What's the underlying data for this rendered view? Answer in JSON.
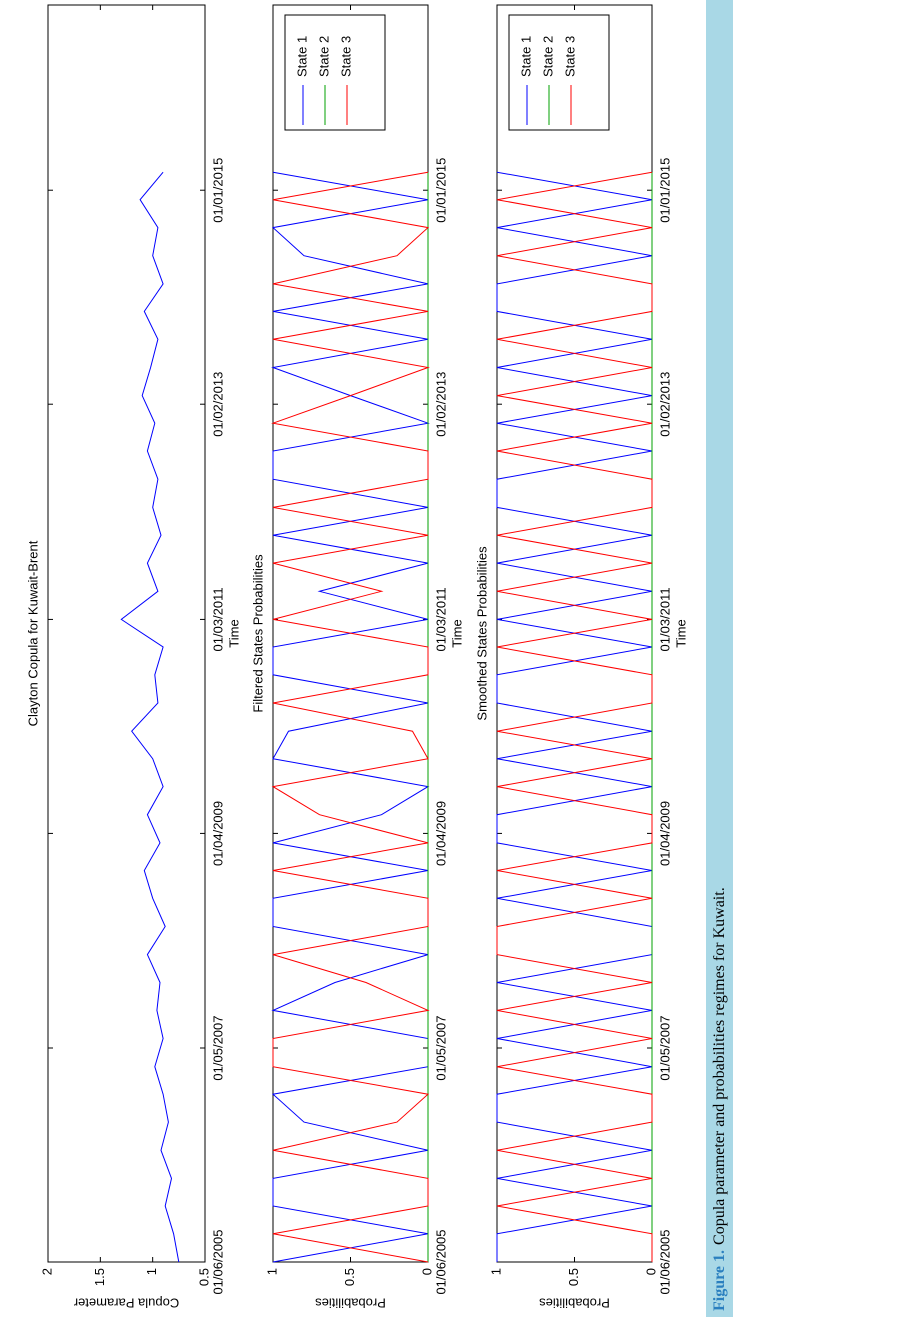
{
  "chart_data": [
    {
      "type": "line",
      "title": "Clayton Copula for Kuwait-Brent",
      "xlabel": "Time",
      "ylabel": "Copula Parameter",
      "x": [
        "2005-06-01",
        "2005-09-01",
        "2005-12-01",
        "2006-03-01",
        "2006-06-01",
        "2006-09-01",
        "2006-12-01",
        "2007-03-01",
        "2007-06-01",
        "2007-09-01",
        "2007-12-01",
        "2008-03-01",
        "2008-06-01",
        "2008-09-01",
        "2008-12-01",
        "2009-03-01",
        "2009-06-01",
        "2009-09-01",
        "2009-12-01",
        "2010-03-01",
        "2010-06-01",
        "2010-09-01",
        "2010-12-01",
        "2011-03-01",
        "2011-06-01",
        "2011-09-01",
        "2011-12-01",
        "2012-03-01",
        "2012-06-01",
        "2012-09-01",
        "2012-12-01",
        "2013-03-01",
        "2013-06-01",
        "2013-09-01",
        "2013-12-01",
        "2014-03-01",
        "2014-06-01",
        "2014-09-01",
        "2014-12-01",
        "2015-03-01"
      ],
      "values": [
        0.75,
        0.8,
        0.88,
        0.82,
        0.92,
        0.85,
        0.9,
        0.98,
        0.9,
        0.96,
        0.93,
        1.05,
        0.88,
        1.0,
        1.08,
        0.93,
        1.05,
        0.9,
        1.0,
        1.2,
        0.95,
        0.98,
        0.9,
        1.3,
        0.95,
        1.05,
        0.92,
        1.0,
        0.95,
        1.05,
        0.98,
        1.1,
        1.02,
        0.95,
        1.08,
        0.9,
        1.0,
        0.95,
        1.12,
        0.9
      ],
      "color": "#0000ff",
      "xlim": [
        "2005-06-01",
        "2016-08-28"
      ],
      "xticks": [
        {
          "value": "2005-06-01",
          "label": "01/06/2005"
        },
        {
          "value": "2007-05-01",
          "label": "01/05/2007"
        },
        {
          "value": "2009-04-01",
          "label": "01/04/2009"
        },
        {
          "value": "2011-03-01",
          "label": "01/03/2011"
        },
        {
          "value": "2013-02-01",
          "label": "01/02/2013"
        },
        {
          "value": "2015-01-01",
          "label": "01/01/2015"
        }
      ],
      "ylim": [
        0.5,
        2
      ],
      "yticks": [
        0.5,
        1,
        1.5,
        2
      ],
      "grid": false
    },
    {
      "type": "line",
      "title": "Filtered States Probabilities",
      "xlabel": "Time",
      "ylabel": "Probabilities",
      "x": [
        "2005-06-01",
        "2005-09-01",
        "2005-12-01",
        "2006-03-01",
        "2006-06-01",
        "2006-09-01",
        "2006-12-01",
        "2007-03-01",
        "2007-06-01",
        "2007-09-01",
        "2007-12-01",
        "2008-03-01",
        "2008-06-01",
        "2008-09-01",
        "2008-12-01",
        "2009-03-01",
        "2009-06-01",
        "2009-09-01",
        "2009-12-01",
        "2010-03-01",
        "2010-06-01",
        "2010-09-01",
        "2010-12-01",
        "2011-03-01",
        "2011-06-01",
        "2011-09-01",
        "2011-12-01",
        "2012-03-01",
        "2012-06-01",
        "2012-09-01",
        "2012-12-01",
        "2013-03-01",
        "2013-06-01",
        "2013-09-01",
        "2013-12-01",
        "2014-03-01",
        "2014-06-01",
        "2014-09-01",
        "2014-12-01",
        "2015-03-01"
      ],
      "series": [
        {
          "name": "State 1",
          "color": "#0000ff",
          "values": [
            1,
            0,
            1,
            1,
            0,
            0.8,
            1,
            0,
            0,
            1,
            0.6,
            0,
            1,
            1,
            0,
            1,
            0.3,
            0,
            1,
            0.9,
            0,
            1,
            1,
            0,
            0.7,
            0,
            1,
            0,
            1,
            1,
            0,
            0.5,
            1,
            0,
            1,
            0,
            0.8,
            1,
            0,
            1
          ]
        },
        {
          "name": "State 2",
          "color": "#00a000",
          "values": [
            0,
            0,
            0,
            0,
            0,
            0,
            0,
            0,
            0,
            0,
            0,
            0,
            0,
            0,
            0,
            0,
            0,
            0,
            0,
            0,
            0,
            0,
            0,
            0,
            0,
            0,
            0,
            0,
            0,
            0,
            0,
            0,
            0,
            0,
            0,
            0,
            0,
            0,
            0,
            0
          ]
        },
        {
          "name": "State 3",
          "color": "#ff0000",
          "values": [
            0,
            1,
            0,
            0,
            1,
            0.2,
            0,
            1,
            1,
            0,
            0.4,
            1,
            0,
            0,
            1,
            0,
            0.7,
            1,
            0,
            0.1,
            1,
            0,
            0,
            1,
            0.3,
            1,
            0,
            1,
            0,
            0,
            1,
            0.5,
            0,
            1,
            0,
            1,
            0.2,
            0,
            1,
            0
          ]
        }
      ],
      "xlim": [
        "2005-06-01",
        "2016-08-28"
      ],
      "xticks": [
        {
          "value": "2005-06-01",
          "label": "01/06/2005"
        },
        {
          "value": "2007-05-01",
          "label": "01/05/2007"
        },
        {
          "value": "2009-04-01",
          "label": "01/04/2009"
        },
        {
          "value": "2011-03-01",
          "label": "01/03/2011"
        },
        {
          "value": "2013-02-01",
          "label": "01/02/2013"
        },
        {
          "value": "2015-01-01",
          "label": "01/01/2015"
        }
      ],
      "ylim": [
        0,
        1
      ],
      "yticks": [
        0,
        0.5,
        1
      ],
      "grid": false,
      "legend": "upper right"
    },
    {
      "type": "line",
      "title": "Smoothed States Probabilities",
      "xlabel": "Time",
      "ylabel": "Probabilities",
      "x": [
        "2005-06-01",
        "2005-09-01",
        "2005-12-01",
        "2006-03-01",
        "2006-06-01",
        "2006-09-01",
        "2006-12-01",
        "2007-03-01",
        "2007-06-01",
        "2007-09-01",
        "2007-12-01",
        "2008-03-01",
        "2008-06-01",
        "2008-09-01",
        "2008-12-01",
        "2009-03-01",
        "2009-06-01",
        "2009-09-01",
        "2009-12-01",
        "2010-03-01",
        "2010-06-01",
        "2010-09-01",
        "2010-12-01",
        "2011-03-01",
        "2011-06-01",
        "2011-09-01",
        "2011-12-01",
        "2012-03-01",
        "2012-06-01",
        "2012-09-01",
        "2012-12-01",
        "2013-03-01",
        "2013-06-01",
        "2013-09-01",
        "2013-12-01",
        "2014-03-01",
        "2014-06-01",
        "2014-09-01",
        "2014-12-01",
        "2015-03-01"
      ],
      "series": [
        {
          "name": "State 1",
          "color": "#0000ff",
          "values": [
            1,
            1,
            0,
            1,
            0,
            1,
            1,
            0,
            1,
            0,
            1,
            0,
            0,
            1,
            0,
            1,
            1,
            0,
            1,
            0,
            1,
            1,
            0,
            1,
            0,
            1,
            0,
            1,
            1,
            0,
            1,
            0,
            1,
            0,
            1,
            1,
            0,
            1,
            0,
            1
          ]
        },
        {
          "name": "State 2",
          "color": "#00a000",
          "values": [
            0,
            0,
            0,
            0,
            0,
            0,
            0,
            0,
            0,
            0,
            0,
            0,
            0,
            0,
            0,
            0,
            0,
            0,
            0,
            0,
            0,
            0,
            0,
            0,
            0,
            0,
            0,
            0,
            0,
            0,
            0,
            0,
            0,
            0,
            0,
            0,
            0,
            0,
            0,
            0
          ]
        },
        {
          "name": "State 3",
          "color": "#ff0000",
          "values": [
            0,
            0,
            1,
            0,
            1,
            0,
            0,
            1,
            0,
            1,
            0,
            1,
            1,
            0,
            1,
            0,
            0,
            1,
            0,
            1,
            0,
            0,
            1,
            0,
            1,
            0,
            1,
            0,
            0,
            1,
            0,
            1,
            0,
            1,
            0,
            0,
            1,
            0,
            1,
            0
          ]
        }
      ],
      "xlim": [
        "2005-06-01",
        "2016-08-28"
      ],
      "xticks": [
        {
          "value": "2005-06-01",
          "label": "01/06/2005"
        },
        {
          "value": "2007-05-01",
          "label": "01/05/2007"
        },
        {
          "value": "2009-04-01",
          "label": "01/04/2009"
        },
        {
          "value": "2011-03-01",
          "label": "01/03/2011"
        },
        {
          "value": "2013-02-01",
          "label": "01/02/2013"
        },
        {
          "value": "2015-01-01",
          "label": "01/01/2015"
        }
      ],
      "ylim": [
        0,
        1
      ],
      "yticks": [
        0,
        0.5,
        1
      ],
      "grid": false,
      "legend": "upper right"
    }
  ],
  "caption": {
    "label": "Figure 1.",
    "text": "Copula parameter and probabilities regimes for Kuwait."
  }
}
